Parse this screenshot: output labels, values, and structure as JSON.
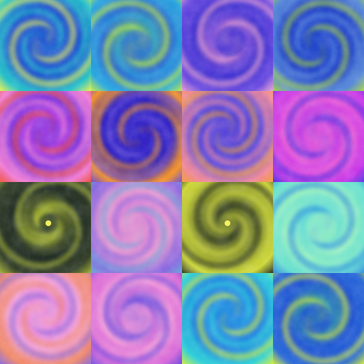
{
  "tiles": [
    {
      "row": 0,
      "col": 0,
      "palette": [
        "#2f6bd6",
        "#27c2c9",
        "#f4f34a",
        "#1b4fd0"
      ],
      "eye": "none",
      "swirl": "ccw"
    },
    {
      "row": 0,
      "col": 1,
      "palette": [
        "#5fd06a",
        "#2aa7e0",
        "#c8ef3a",
        "#2c6ad0"
      ],
      "eye": "none",
      "swirl": "ccw"
    },
    {
      "row": 0,
      "col": 2,
      "palette": [
        "#e88ad8",
        "#6a4ae0",
        "#f0a6cf",
        "#3c2fcf"
      ],
      "eye": "none",
      "swirl": "cw"
    },
    {
      "row": 0,
      "col": 3,
      "palette": [
        "#2a52d8",
        "#5a8bd8",
        "#a6d63a",
        "#1f3fc8"
      ],
      "eye": "none",
      "swirl": "cw"
    },
    {
      "row": 1,
      "col": 0,
      "palette": [
        "#e24ae8",
        "#f07fd6",
        "#f0503a",
        "#7a34e0"
      ],
      "eye": "none",
      "swirl": "ccw"
    },
    {
      "row": 1,
      "col": 1,
      "palette": [
        "#3a2fd0",
        "#f2922a",
        "#6a4ad8",
        "#2a1fc0"
      ],
      "eye": "none",
      "swirl": "cw"
    },
    {
      "row": 1,
      "col": 2,
      "palette": [
        "#3c33d6",
        "#f08a9a",
        "#f2a13a",
        "#5a4ae0"
      ],
      "eye": "none",
      "swirl": "ccw"
    },
    {
      "row": 1,
      "col": 3,
      "palette": [
        "#8a2ee8",
        "#c93ae8",
        "#4a30e0",
        "#e85fd8"
      ],
      "eye": "none",
      "swirl": "cw"
    },
    {
      "row": 2,
      "col": 0,
      "palette": [
        "#d8e83a",
        "#34402a",
        "#aab83a",
        "#1e2a26"
      ],
      "eye": "bright",
      "swirl": "cw"
    },
    {
      "row": 2,
      "col": 1,
      "palette": [
        "#d66bd8",
        "#8a6ae0",
        "#6aa6d8",
        "#e89ad0"
      ],
      "eye": "none",
      "swirl": "cw"
    },
    {
      "row": 2,
      "col": 2,
      "palette": [
        "#3a442a",
        "#cfd93a",
        "#1c2620",
        "#8f9a30"
      ],
      "eye": "bright",
      "swirl": "cw"
    },
    {
      "row": 2,
      "col": 3,
      "palette": [
        "#3ac7e8",
        "#6ae0d0",
        "#2a88e0",
        "#9af0c0"
      ],
      "eye": "none",
      "swirl": "ccw"
    },
    {
      "row": 3,
      "col": 0,
      "palette": [
        "#d66be0",
        "#f08a6a",
        "#8a6ae0",
        "#f2a2d8"
      ],
      "eye": "none",
      "swirl": "ccw"
    },
    {
      "row": 3,
      "col": 1,
      "palette": [
        "#3a2fe0",
        "#d86ad8",
        "#6a4ae0",
        "#f09ad8"
      ],
      "eye": "none",
      "swirl": "cw"
    },
    {
      "row": 3,
      "col": 2,
      "palette": [
        "#35a8e8",
        "#2fd0d8",
        "#d8ef3a",
        "#1f7fe0"
      ],
      "eye": "none",
      "swirl": "ccw"
    },
    {
      "row": 3,
      "col": 3,
      "palette": [
        "#4ad07a",
        "#2a6ad8",
        "#d8ef3a",
        "#1e4fd0"
      ],
      "eye": "none",
      "swirl": "ccw"
    }
  ]
}
